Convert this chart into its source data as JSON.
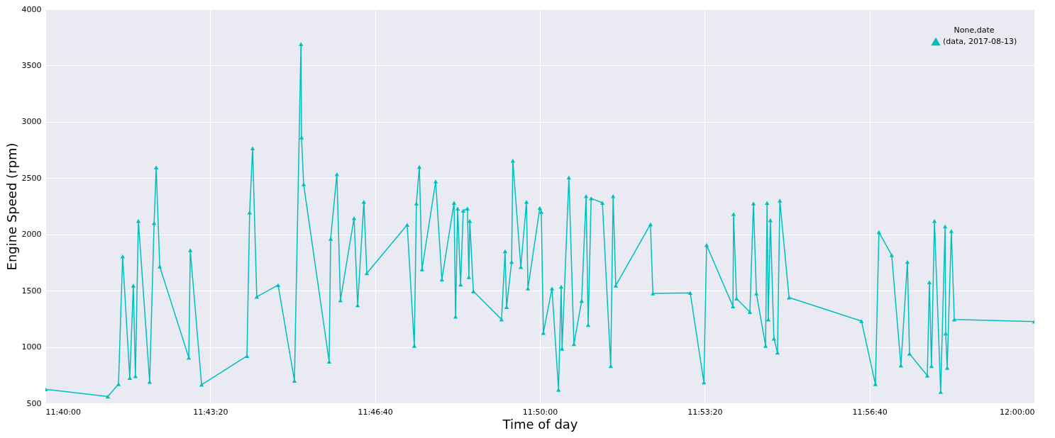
{
  "chart_data": {
    "type": "line",
    "xlabel": "Time of day",
    "ylabel": "Engine Speed (rpm)",
    "legend_title": "None,date",
    "x": [
      11.6667,
      11.6877,
      11.6913,
      11.6927,
      11.6951,
      11.6963,
      11.697,
      11.698,
      11.7018,
      11.7033,
      11.704,
      11.7052,
      11.715,
      11.7155,
      11.7193,
      11.7346,
      11.7355,
      11.7365,
      11.7379,
      11.7451,
      11.7506,
      11.7528,
      11.753,
      11.7537,
      11.7623,
      11.7628,
      11.7649,
      11.7661,
      11.7707,
      11.7719,
      11.774,
      11.775,
      11.7886,
      11.791,
      11.7917,
      11.7927,
      11.7936,
      11.7982,
      11.8003,
      11.8044,
      11.8049,
      11.8056,
      11.8066,
      11.8075,
      11.8089,
      11.8094,
      11.8097,
      11.8109,
      11.8204,
      11.8216,
      11.8221,
      11.8238,
      11.8242,
      11.8269,
      11.8288,
      11.8293,
      11.8333,
      11.8338,
      11.8345,
      11.8374,
      11.8396,
      11.8405,
      11.8408,
      11.8431,
      11.8448,
      11.8474,
      11.8489,
      11.8496,
      11.8506,
      11.8544,
      11.8572,
      11.858,
      11.8589,
      11.8706,
      11.8714,
      11.884,
      11.8886,
      11.8895,
      11.8984,
      11.8986,
      11.8996,
      11.9041,
      11.9053,
      11.9063,
      11.9094,
      11.9099,
      11.9103,
      11.911,
      11.9122,
      11.9134,
      11.9142,
      11.9173,
      11.9417,
      11.9464,
      11.9476,
      11.9519,
      11.955,
      11.9572,
      11.9579,
      11.9639,
      11.9646,
      11.9653,
      11.9663,
      11.9684,
      11.9699,
      11.9701,
      11.9706,
      11.972,
      11.973,
      12.0
    ],
    "series": [
      {
        "name": "(data, 2017-08-13)",
        "color": "#00bfbf",
        "values": [
          625,
          560,
          670,
          1805,
          725,
          1545,
          740,
          2120,
          690,
          2100,
          2595,
          1715,
          905,
          1860,
          665,
          920,
          2195,
          2765,
          1445,
          1550,
          700,
          3690,
          2860,
          2445,
          870,
          1960,
          2535,
          1415,
          2145,
          1370,
          2290,
          1655,
          2085,
          1010,
          2275,
          2600,
          1690,
          2470,
          1600,
          2280,
          1270,
          2230,
          1555,
          2210,
          2230,
          1620,
          2120,
          1495,
          1245,
          1850,
          1355,
          1755,
          2655,
          1710,
          2290,
          1520,
          2235,
          2200,
          1125,
          1520,
          620,
          1535,
          985,
          2505,
          1025,
          1410,
          2340,
          1195,
          2320,
          2280,
          830,
          2340,
          1545,
          2090,
          1475,
          1480,
          685,
          1905,
          1360,
          2180,
          1430,
          1310,
          2275,
          1475,
          1010,
          2280,
          1245,
          2125,
          1075,
          950,
          2300,
          1440,
          1230,
          670,
          2020,
          1815,
          835,
          1755,
          940,
          745,
          1575,
          830,
          2120,
          600,
          2070,
          1120,
          815,
          2030,
          1245,
          1225
        ]
      }
    ],
    "xlim": [
      11.666667,
      12
    ],
    "xticks": [
      {
        "value": 11.666667,
        "label": "11:40:00"
      },
      {
        "value": 11.722222,
        "label": "11:43:20"
      },
      {
        "value": 11.777778,
        "label": "11:46:40"
      },
      {
        "value": 11.833333,
        "label": "11:50:00"
      },
      {
        "value": 11.888889,
        "label": "11:53:20"
      },
      {
        "value": 11.944444,
        "label": "11:56:40"
      },
      {
        "value": 12,
        "label": "12:00:00"
      }
    ],
    "ylim": [
      500,
      4000
    ],
    "yticks": [
      500,
      {
        "value": 1000,
        "label": "1000"
      },
      {
        "value": 1500,
        "label": "1500"
      },
      {
        "value": 2000,
        "label": "2000"
      },
      {
        "value": 2500,
        "label": "2500"
      },
      {
        "value": 3000,
        "label": "3000"
      },
      {
        "value": 3500,
        "label": "3500"
      },
      {
        "value": 4000,
        "label": "4000"
      }
    ],
    "grid": true,
    "legend": "top right",
    "marker": "triangle",
    "line_style": "solid"
  }
}
